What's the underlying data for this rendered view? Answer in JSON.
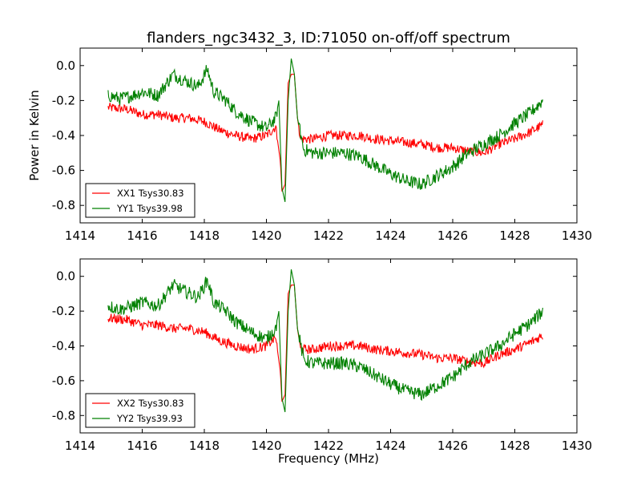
{
  "title": "flanders_ngc3432_3, ID:71050 on-off/off spectrum",
  "chart_data": [
    {
      "type": "line",
      "xlabel": "",
      "ylabel": "Power in Kelvin",
      "xlim": [
        1414,
        1430
      ],
      "ylim": [
        -0.9,
        0.1
      ],
      "xticks": [
        1414,
        1416,
        1418,
        1420,
        1422,
        1424,
        1426,
        1428,
        1430
      ],
      "yticks": [
        0.0,
        -0.2,
        -0.4,
        -0.6,
        -0.8
      ],
      "legend_position": "lower-left",
      "series": [
        {
          "name": "XX1 Tsys30.83",
          "color": "#ff0000",
          "points": [
            [
              1414.9,
              -0.24
            ],
            [
              1415.5,
              -0.25
            ],
            [
              1416.0,
              -0.28
            ],
            [
              1416.5,
              -0.28
            ],
            [
              1417.0,
              -0.3
            ],
            [
              1417.5,
              -0.3
            ],
            [
              1418.0,
              -0.32
            ],
            [
              1418.5,
              -0.37
            ],
            [
              1419.0,
              -0.4
            ],
            [
              1419.5,
              -0.42
            ],
            [
              1420.0,
              -0.4
            ],
            [
              1420.3,
              -0.35
            ],
            [
              1420.45,
              -0.55
            ],
            [
              1420.5,
              -0.72
            ],
            [
              1420.6,
              -0.68
            ],
            [
              1420.7,
              -0.1
            ],
            [
              1420.8,
              -0.05
            ],
            [
              1420.9,
              -0.05
            ],
            [
              1421.0,
              -0.3
            ],
            [
              1421.1,
              -0.42
            ],
            [
              1421.5,
              -0.42
            ],
            [
              1422.0,
              -0.4
            ],
            [
              1422.5,
              -0.4
            ],
            [
              1423.0,
              -0.4
            ],
            [
              1423.5,
              -0.42
            ],
            [
              1424.0,
              -0.43
            ],
            [
              1424.5,
              -0.44
            ],
            [
              1425.0,
              -0.45
            ],
            [
              1425.5,
              -0.47
            ],
            [
              1426.0,
              -0.47
            ],
            [
              1426.5,
              -0.49
            ],
            [
              1427.0,
              -0.5
            ],
            [
              1427.5,
              -0.45
            ],
            [
              1428.0,
              -0.42
            ],
            [
              1428.5,
              -0.38
            ],
            [
              1428.9,
              -0.34
            ]
          ]
        },
        {
          "name": "YY1 Tsys39.98",
          "color": "#008000",
          "points": [
            [
              1414.9,
              -0.17
            ],
            [
              1415.3,
              -0.19
            ],
            [
              1415.7,
              -0.17
            ],
            [
              1416.0,
              -0.15
            ],
            [
              1416.5,
              -0.17
            ],
            [
              1417.0,
              -0.05
            ],
            [
              1417.3,
              -0.08
            ],
            [
              1417.8,
              -0.12
            ],
            [
              1418.1,
              -0.02
            ],
            [
              1418.3,
              -0.15
            ],
            [
              1418.7,
              -0.2
            ],
            [
              1419.0,
              -0.26
            ],
            [
              1419.5,
              -0.32
            ],
            [
              1420.0,
              -0.36
            ],
            [
              1420.3,
              -0.3
            ],
            [
              1420.4,
              -0.2
            ],
            [
              1420.5,
              -0.7
            ],
            [
              1420.6,
              -0.78
            ],
            [
              1420.7,
              -0.2
            ],
            [
              1420.8,
              0.04
            ],
            [
              1420.9,
              -0.05
            ],
            [
              1421.0,
              -0.3
            ],
            [
              1421.2,
              -0.48
            ],
            [
              1421.5,
              -0.5
            ],
            [
              1422.0,
              -0.5
            ],
            [
              1422.5,
              -0.5
            ],
            [
              1423.0,
              -0.52
            ],
            [
              1423.5,
              -0.57
            ],
            [
              1424.0,
              -0.62
            ],
            [
              1424.5,
              -0.66
            ],
            [
              1425.0,
              -0.68
            ],
            [
              1425.5,
              -0.63
            ],
            [
              1426.0,
              -0.58
            ],
            [
              1426.5,
              -0.5
            ],
            [
              1427.0,
              -0.45
            ],
            [
              1427.5,
              -0.4
            ],
            [
              1428.0,
              -0.33
            ],
            [
              1428.5,
              -0.27
            ],
            [
              1428.9,
              -0.2
            ]
          ]
        }
      ]
    },
    {
      "type": "line",
      "xlabel": "Frequency (MHz)",
      "ylabel": "",
      "xlim": [
        1414,
        1430
      ],
      "ylim": [
        -0.9,
        0.1
      ],
      "xticks": [
        1414,
        1416,
        1418,
        1420,
        1422,
        1424,
        1426,
        1428,
        1430
      ],
      "yticks": [
        0.0,
        -0.2,
        -0.4,
        -0.6,
        -0.8
      ],
      "legend_position": "lower-left",
      "series": [
        {
          "name": "XX2 Tsys30.83",
          "color": "#ff0000",
          "points": [
            [
              1414.9,
              -0.24
            ],
            [
              1415.5,
              -0.25
            ],
            [
              1416.0,
              -0.28
            ],
            [
              1416.5,
              -0.28
            ],
            [
              1417.0,
              -0.3
            ],
            [
              1417.5,
              -0.3
            ],
            [
              1418.0,
              -0.32
            ],
            [
              1418.5,
              -0.37
            ],
            [
              1419.0,
              -0.4
            ],
            [
              1419.5,
              -0.42
            ],
            [
              1420.0,
              -0.4
            ],
            [
              1420.3,
              -0.35
            ],
            [
              1420.45,
              -0.55
            ],
            [
              1420.5,
              -0.72
            ],
            [
              1420.6,
              -0.68
            ],
            [
              1420.7,
              -0.1
            ],
            [
              1420.8,
              -0.05
            ],
            [
              1420.9,
              -0.05
            ],
            [
              1421.0,
              -0.3
            ],
            [
              1421.1,
              -0.42
            ],
            [
              1421.5,
              -0.42
            ],
            [
              1422.0,
              -0.4
            ],
            [
              1422.5,
              -0.4
            ],
            [
              1423.0,
              -0.4
            ],
            [
              1423.5,
              -0.42
            ],
            [
              1424.0,
              -0.43
            ],
            [
              1424.5,
              -0.44
            ],
            [
              1425.0,
              -0.45
            ],
            [
              1425.5,
              -0.47
            ],
            [
              1426.0,
              -0.47
            ],
            [
              1426.5,
              -0.49
            ],
            [
              1427.0,
              -0.5
            ],
            [
              1427.5,
              -0.45
            ],
            [
              1428.0,
              -0.42
            ],
            [
              1428.5,
              -0.38
            ],
            [
              1428.9,
              -0.34
            ]
          ]
        },
        {
          "name": "YY2 Tsys39.93",
          "color": "#008000",
          "points": [
            [
              1414.9,
              -0.17
            ],
            [
              1415.3,
              -0.19
            ],
            [
              1415.7,
              -0.17
            ],
            [
              1416.0,
              -0.15
            ],
            [
              1416.5,
              -0.17
            ],
            [
              1417.0,
              -0.05
            ],
            [
              1417.3,
              -0.08
            ],
            [
              1417.8,
              -0.12
            ],
            [
              1418.1,
              -0.02
            ],
            [
              1418.3,
              -0.15
            ],
            [
              1418.7,
              -0.2
            ],
            [
              1419.0,
              -0.26
            ],
            [
              1419.5,
              -0.32
            ],
            [
              1420.0,
              -0.36
            ],
            [
              1420.3,
              -0.3
            ],
            [
              1420.4,
              -0.2
            ],
            [
              1420.5,
              -0.7
            ],
            [
              1420.6,
              -0.78
            ],
            [
              1420.7,
              -0.2
            ],
            [
              1420.8,
              0.04
            ],
            [
              1420.9,
              -0.05
            ],
            [
              1421.0,
              -0.3
            ],
            [
              1421.2,
              -0.48
            ],
            [
              1421.5,
              -0.5
            ],
            [
              1422.0,
              -0.5
            ],
            [
              1422.5,
              -0.5
            ],
            [
              1423.0,
              -0.52
            ],
            [
              1423.5,
              -0.57
            ],
            [
              1424.0,
              -0.62
            ],
            [
              1424.5,
              -0.66
            ],
            [
              1425.0,
              -0.68
            ],
            [
              1425.5,
              -0.63
            ],
            [
              1426.0,
              -0.58
            ],
            [
              1426.5,
              -0.5
            ],
            [
              1427.0,
              -0.45
            ],
            [
              1427.5,
              -0.4
            ],
            [
              1428.0,
              -0.33
            ],
            [
              1428.5,
              -0.27
            ],
            [
              1428.9,
              -0.2
            ]
          ]
        }
      ]
    }
  ]
}
